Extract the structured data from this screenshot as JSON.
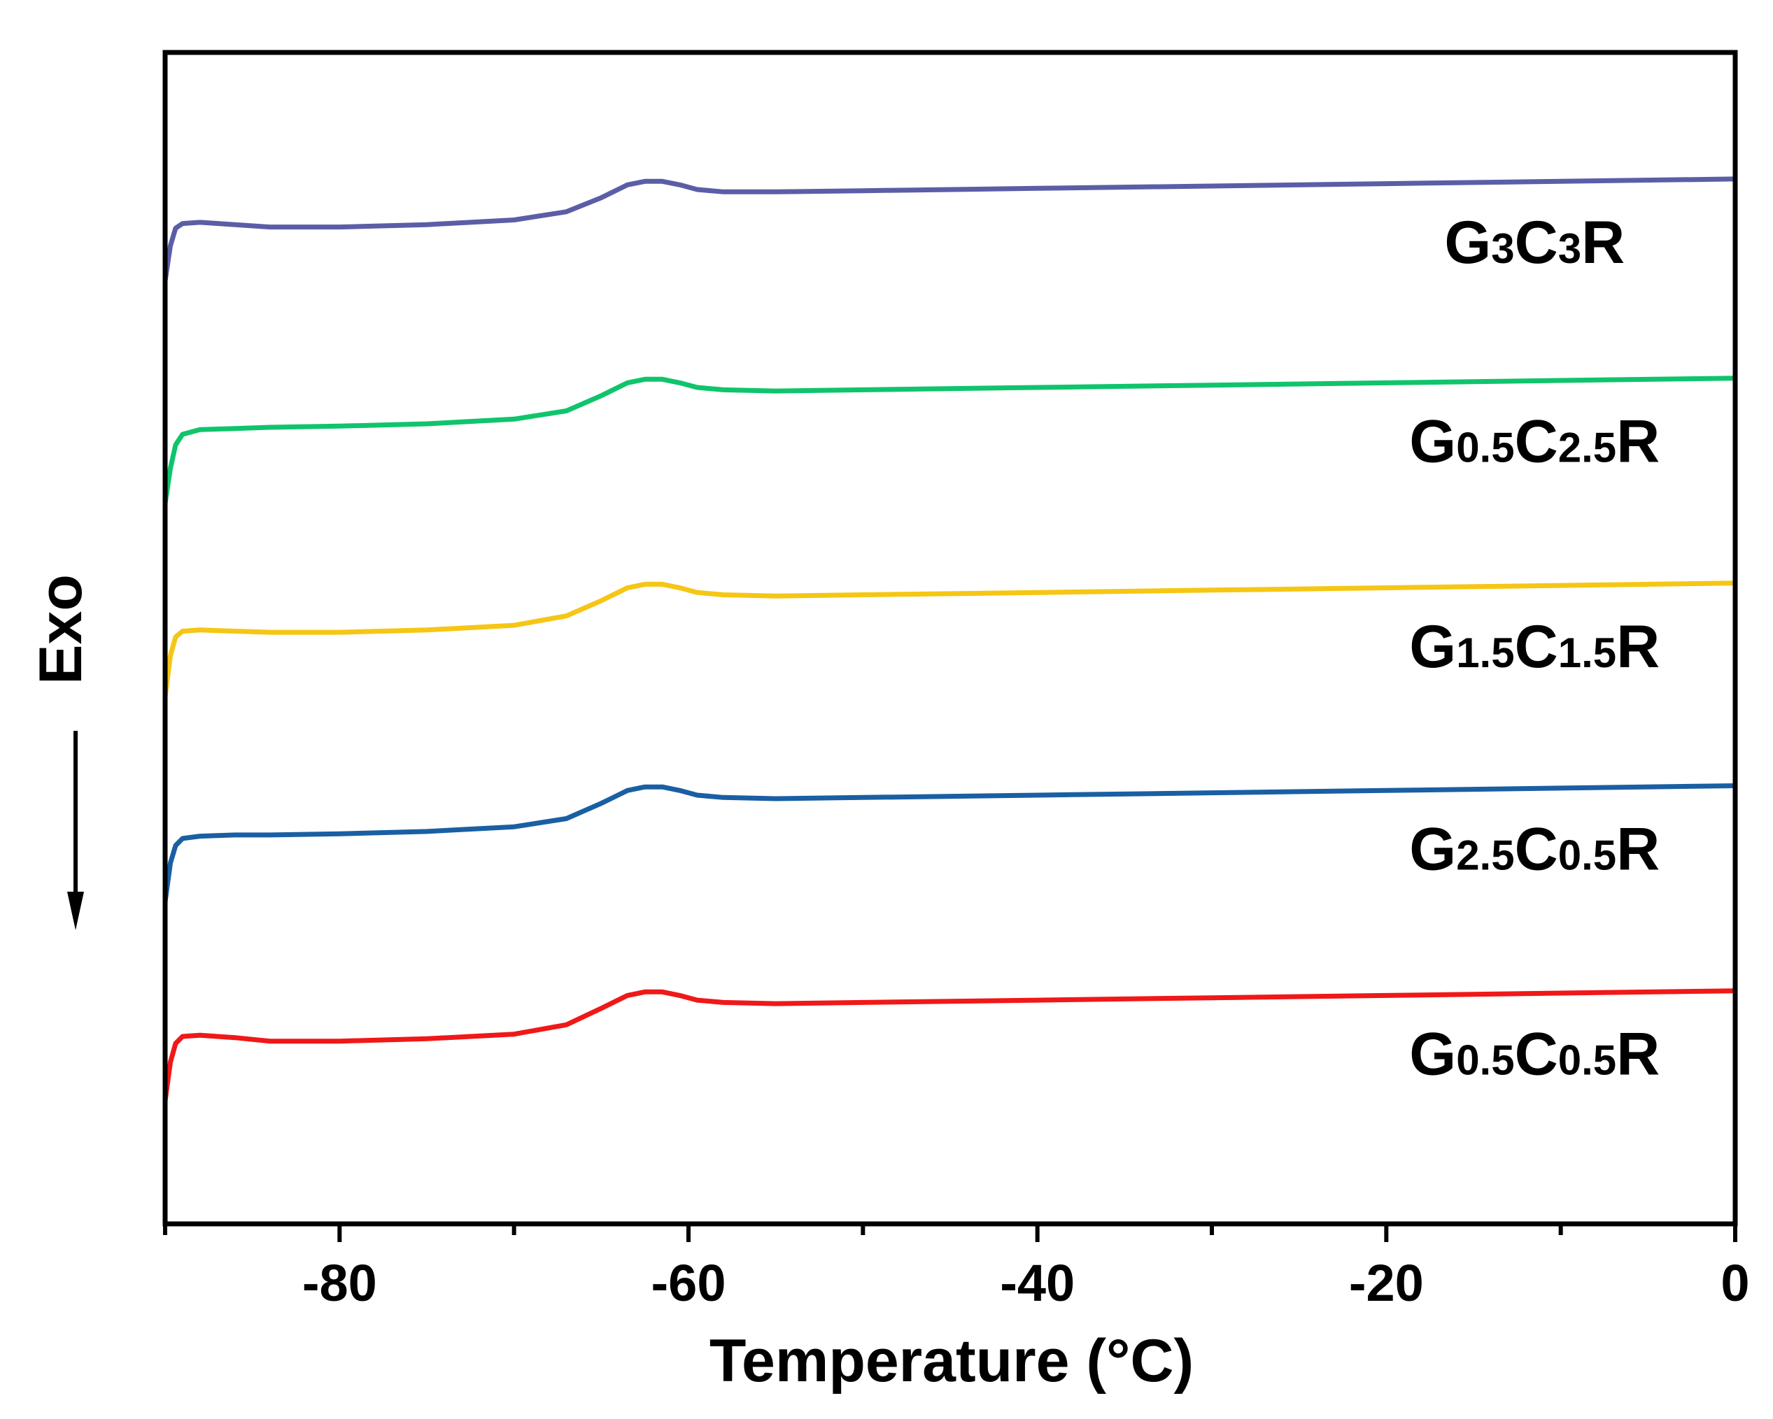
{
  "chart_data": {
    "type": "line",
    "title": "",
    "xlabel": "Temperature (°C)",
    "ylabel": "Exo",
    "xlim": [
      -90,
      0
    ],
    "ylim": [
      0,
      10
    ],
    "xticks": [
      -80,
      -60,
      -40,
      -20,
      0
    ],
    "xtick_labels": [
      "-80",
      "-60",
      "-40",
      "-20",
      "0"
    ],
    "y_units": "arbitrary (curves vertically offset)",
    "grid": false,
    "series": [
      {
        "name": "G3C3R",
        "label_parts": [
          {
            "t": "G",
            "s": false
          },
          {
            "t": "3",
            "s": true
          },
          {
            "t": "C",
            "s": false
          },
          {
            "t": "3",
            "s": true
          },
          {
            "t": "R",
            "s": false
          }
        ],
        "color": "#5b5ea6",
        "x": [
          -90,
          -89.7,
          -89.4,
          -89,
          -88,
          -86,
          -84,
          -80,
          -75,
          -70,
          -67,
          -65,
          -63.5,
          -62.5,
          -61.5,
          -60.5,
          -59.5,
          -58,
          -55,
          -50,
          -40,
          -30,
          -20,
          -10,
          0
        ],
        "y": [
          8.05,
          8.35,
          8.5,
          8.54,
          8.55,
          8.53,
          8.51,
          8.51,
          8.53,
          8.57,
          8.64,
          8.76,
          8.87,
          8.9,
          8.9,
          8.87,
          8.83,
          8.81,
          8.81,
          8.82,
          8.84,
          8.86,
          8.88,
          8.9,
          8.92
        ]
      },
      {
        "name": "G0.5C2.5R",
        "label_parts": [
          {
            "t": "G",
            "s": false
          },
          {
            "t": "0.5",
            "s": true
          },
          {
            "t": "C",
            "s": false
          },
          {
            "t": "2.5",
            "s": true
          },
          {
            "t": "R",
            "s": false
          }
        ],
        "color": "#10c46c",
        "x": [
          -90,
          -89.7,
          -89.4,
          -89,
          -88,
          -86,
          -84,
          -80,
          -75,
          -70,
          -67,
          -65,
          -63.5,
          -62.5,
          -61.5,
          -60.5,
          -59.5,
          -58,
          -55,
          -50,
          -40,
          -30,
          -20,
          -10,
          0
        ],
        "y": [
          6.15,
          6.45,
          6.65,
          6.74,
          6.78,
          6.79,
          6.8,
          6.81,
          6.83,
          6.87,
          6.94,
          7.07,
          7.18,
          7.21,
          7.21,
          7.18,
          7.14,
          7.12,
          7.11,
          7.12,
          7.14,
          7.16,
          7.18,
          7.2,
          7.22
        ]
      },
      {
        "name": "G1.5C1.5R",
        "label_parts": [
          {
            "t": "G",
            "s": false
          },
          {
            "t": "1.5",
            "s": true
          },
          {
            "t": "C",
            "s": false
          },
          {
            "t": "1.5",
            "s": true
          },
          {
            "t": "R",
            "s": false
          }
        ],
        "color": "#f5c614",
        "x": [
          -90,
          -89.7,
          -89.4,
          -89,
          -88,
          -86,
          -84,
          -80,
          -75,
          -70,
          -67,
          -65,
          -63.5,
          -62.5,
          -61.5,
          -60.5,
          -59.5,
          -58,
          -55,
          -50,
          -40,
          -30,
          -20,
          -10,
          0
        ],
        "y": [
          4.5,
          4.85,
          5.01,
          5.06,
          5.07,
          5.06,
          5.05,
          5.05,
          5.07,
          5.11,
          5.19,
          5.32,
          5.43,
          5.46,
          5.46,
          5.43,
          5.39,
          5.37,
          5.36,
          5.37,
          5.39,
          5.41,
          5.43,
          5.45,
          5.47
        ]
      },
      {
        "name": "G2.5C0.5R",
        "label_parts": [
          {
            "t": "G",
            "s": false
          },
          {
            "t": "2.5",
            "s": true
          },
          {
            "t": "C",
            "s": false
          },
          {
            "t": "0.5",
            "s": true
          },
          {
            "t": "R",
            "s": false
          }
        ],
        "color": "#1a5fa3",
        "x": [
          -90,
          -89.7,
          -89.4,
          -89,
          -88,
          -86,
          -84,
          -80,
          -75,
          -70,
          -67,
          -65,
          -63.5,
          -62.5,
          -61.5,
          -60.5,
          -59.5,
          -58,
          -55,
          -50,
          -40,
          -30,
          -20,
          -10,
          0
        ],
        "y": [
          2.75,
          3.08,
          3.23,
          3.29,
          3.31,
          3.32,
          3.32,
          3.33,
          3.35,
          3.39,
          3.46,
          3.59,
          3.7,
          3.73,
          3.73,
          3.7,
          3.66,
          3.64,
          3.63,
          3.64,
          3.66,
          3.68,
          3.7,
          3.72,
          3.74
        ]
      },
      {
        "name": "G0.5C0.5R",
        "label_parts": [
          {
            "t": "G",
            "s": false
          },
          {
            "t": "0.5",
            "s": true
          },
          {
            "t": "C",
            "s": false
          },
          {
            "t": "0.5",
            "s": true
          },
          {
            "t": "R",
            "s": false
          }
        ],
        "color": "#f01818",
        "x": [
          -90,
          -89.7,
          -89.4,
          -89,
          -88,
          -86,
          -84,
          -80,
          -75,
          -70,
          -67,
          -65,
          -63.5,
          -62.5,
          -61.5,
          -60.5,
          -59.5,
          -58,
          -55,
          -50,
          -40,
          -30,
          -20,
          -10,
          0
        ],
        "y": [
          1.05,
          1.38,
          1.54,
          1.6,
          1.61,
          1.59,
          1.56,
          1.56,
          1.58,
          1.62,
          1.7,
          1.84,
          1.95,
          1.98,
          1.98,
          1.95,
          1.91,
          1.89,
          1.88,
          1.89,
          1.91,
          1.93,
          1.95,
          1.97,
          1.99
        ]
      }
    ]
  }
}
